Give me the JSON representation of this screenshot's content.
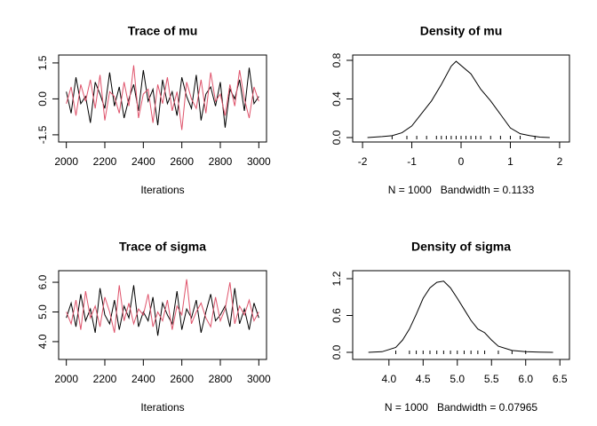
{
  "chart_data": [
    {
      "type": "line",
      "title": "Trace of mu",
      "xlabel": "Iterations",
      "x": [
        2000,
        2025,
        2050,
        2075,
        2100,
        2125,
        2150,
        2175,
        2200,
        2225,
        2250,
        2275,
        2300,
        2325,
        2350,
        2375,
        2400,
        2425,
        2450,
        2475,
        2500,
        2525,
        2550,
        2575,
        2600,
        2625,
        2650,
        2675,
        2700,
        2725,
        2750,
        2775,
        2800,
        2825,
        2850,
        2875,
        2900,
        2925,
        2950,
        2975,
        3000
      ],
      "series": [
        {
          "color": "#000000",
          "values": [
            0.3,
            -0.6,
            0.9,
            -0.2,
            0.1,
            -1.0,
            0.7,
            0.2,
            -0.4,
            1.1,
            -0.3,
            0.5,
            -0.8,
            0.0,
            0.6,
            -0.5,
            1.2,
            -0.1,
            0.4,
            -1.1,
            0.8,
            -0.2,
            0.3,
            -0.7,
            0.9,
            0.1,
            -0.4,
            1.0,
            -0.9,
            0.2,
            0.5,
            -0.3,
            0.7,
            -1.2,
            0.4,
            0.0,
            0.8,
            -0.5,
            1.3,
            -0.2,
            0.1
          ]
        },
        {
          "color": "#df536b",
          "values": [
            -0.2,
            0.5,
            -0.7,
            0.6,
            -0.1,
            0.8,
            -0.4,
            1.0,
            -0.9,
            0.3,
            0.1,
            -0.6,
            0.7,
            -0.3,
            1.4,
            -0.8,
            0.2,
            0.4,
            -1.0,
            0.6,
            -0.2,
            0.9,
            -0.5,
            0.3,
            -1.3,
            0.7,
            0.0,
            -0.4,
            0.8,
            -0.6,
            1.1,
            -0.1,
            0.2,
            -0.7,
            0.6,
            -0.3,
            1.2,
            0.0,
            -0.8,
            0.5,
            -0.1
          ]
        }
      ],
      "xlim": [
        1960,
        3040
      ],
      "xticks": [
        2000,
        2200,
        2400,
        2600,
        2800,
        3000
      ],
      "ylim": [
        -1.8,
        1.83
      ],
      "yticks": [
        -1.5,
        {
          "value": 0,
          "label": "0.0"
        },
        1.5
      ]
    },
    {
      "type": "line",
      "title": "Density of mu",
      "xlabel": "N = 1000   Bandwidth = 0.1133",
      "x": [
        -1.9,
        -1.6,
        -1.4,
        -1.2,
        -1.0,
        -0.8,
        -0.6,
        -0.4,
        -0.2,
        -0.1,
        0.2,
        0.4,
        0.6,
        0.8,
        1.0,
        1.2,
        1.4,
        1.6,
        1.8
      ],
      "values": [
        0.0,
        0.01,
        0.02,
        0.05,
        0.12,
        0.25,
        0.38,
        0.55,
        0.74,
        0.79,
        0.66,
        0.5,
        0.38,
        0.24,
        0.1,
        0.04,
        0.02,
        0.005,
        0.0
      ],
      "color": "#000000",
      "rug": [
        -1.4,
        -1.1,
        -0.9,
        -0.7,
        -0.5,
        -0.4,
        -0.3,
        -0.2,
        -0.1,
        0.0,
        0.1,
        0.2,
        0.3,
        0.4,
        0.6,
        0.8,
        1.0,
        1.2,
        1.5
      ],
      "xlim": [
        -2.2,
        2.2
      ],
      "xticks": [
        -2,
        -1,
        0,
        1,
        2
      ],
      "ylim": [
        -0.046,
        0.855
      ],
      "yticks": [
        {
          "value": 0,
          "label": "0.0"
        },
        0.4,
        0.8
      ]
    },
    {
      "type": "line",
      "title": "Trace of sigma",
      "xlabel": "Iterations",
      "x": [
        2000,
        2025,
        2050,
        2075,
        2100,
        2125,
        2150,
        2175,
        2200,
        2225,
        2250,
        2275,
        2300,
        2325,
        2350,
        2375,
        2400,
        2425,
        2450,
        2475,
        2500,
        2525,
        2550,
        2575,
        2600,
        2625,
        2650,
        2675,
        2700,
        2725,
        2750,
        2775,
        2800,
        2825,
        2850,
        2875,
        2900,
        2925,
        2950,
        2975,
        3000
      ],
      "series": [
        {
          "color": "#000000",
          "values": [
            4.8,
            5.3,
            4.5,
            5.6,
            4.7,
            5.1,
            4.3,
            5.8,
            4.9,
            4.6,
            5.4,
            4.4,
            5.2,
            4.8,
            5.9,
            4.5,
            5.0,
            4.7,
            5.5,
            4.2,
            5.3,
            4.9,
            4.6,
            5.7,
            4.4,
            5.1,
            4.8,
            5.4,
            4.3,
            5.0,
            5.6,
            4.7,
            4.9,
            5.2,
            4.5,
            5.8,
            4.6,
            5.1,
            4.4,
            5.3,
            4.8
          ]
        },
        {
          "color": "#df536b",
          "values": [
            5.0,
            4.6,
            5.4,
            4.4,
            5.7,
            4.8,
            5.2,
            4.5,
            5.5,
            5.0,
            4.3,
            5.9,
            4.7,
            5.3,
            4.6,
            5.1,
            4.9,
            5.6,
            4.5,
            5.0,
            4.7,
            5.4,
            4.4,
            5.2,
            4.9,
            6.1,
            4.6,
            5.0,
            5.3,
            4.8,
            4.5,
            5.5,
            4.7,
            5.1,
            6.0,
            4.6,
            5.2,
            4.9,
            5.4,
            4.7,
            5.0
          ]
        }
      ],
      "xlim": [
        1960,
        3040
      ],
      "xticks": [
        2000,
        2200,
        2400,
        2600,
        2800,
        3000
      ],
      "ylim": [
        3.4,
        6.39
      ],
      "yticks": [
        {
          "value": 4,
          "label": "4.0"
        },
        {
          "value": 5,
          "label": "5.0"
        },
        {
          "value": 6,
          "label": "6.0"
        }
      ]
    },
    {
      "type": "line",
      "title": "Density of sigma",
      "xlabel": "N = 1000   Bandwidth = 0.07965",
      "x": [
        3.7,
        3.9,
        4.1,
        4.2,
        4.3,
        4.4,
        4.5,
        4.6,
        4.7,
        4.8,
        4.9,
        5.0,
        5.1,
        5.2,
        5.3,
        5.4,
        5.5,
        5.6,
        5.8,
        6.0,
        6.2,
        6.4
      ],
      "values": [
        0.0,
        0.01,
        0.08,
        0.2,
        0.38,
        0.62,
        0.88,
        1.05,
        1.14,
        1.16,
        1.05,
        0.88,
        0.7,
        0.52,
        0.38,
        0.32,
        0.2,
        0.1,
        0.03,
        0.01,
        0.003,
        0.0
      ],
      "color": "#000000",
      "rug": [
        4.1,
        4.3,
        4.4,
        4.5,
        4.6,
        4.7,
        4.8,
        4.9,
        5.0,
        5.1,
        5.2,
        5.3,
        5.4,
        5.6,
        5.8,
        6.0
      ],
      "xlim": [
        3.47,
        6.64
      ],
      "xticks": [
        {
          "value": 4,
          "label": "4.0"
        },
        4.5,
        {
          "value": 5,
          "label": "5.0"
        },
        5.5,
        {
          "value": 6,
          "label": "6.0"
        },
        6.5
      ],
      "ylim": [
        -0.116,
        1.33
      ],
      "yticks": [
        {
          "value": 0,
          "label": "0.0"
        },
        0.6,
        1.2
      ]
    }
  ]
}
